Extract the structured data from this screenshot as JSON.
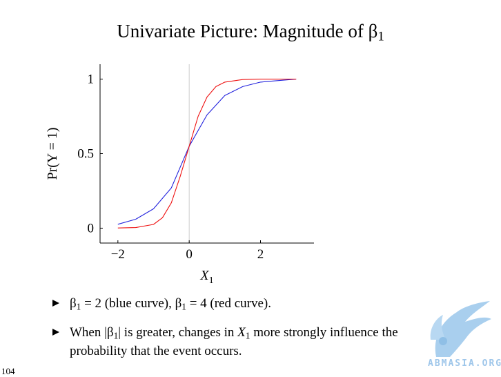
{
  "slide": {
    "title_prefix": "Univariate Picture: Magnitude of β",
    "title_sub": "1",
    "page_number": "104"
  },
  "bullets": [
    {
      "parts": [
        {
          "t": "β"
        },
        {
          "t": "1",
          "sub": true
        },
        {
          "t": " = 2 (blue curve), β"
        },
        {
          "t": "1",
          "sub": true
        },
        {
          "t": " = 4 (red curve)."
        }
      ]
    },
    {
      "parts": [
        {
          "t": "When |β"
        },
        {
          "t": "1",
          "sub": true
        },
        {
          "t": "| is greater, changes in "
        },
        {
          "t": "X",
          "italic": true
        },
        {
          "t": "1",
          "sub": true
        },
        {
          "t": " more strongly influence the probability that the event occurs."
        }
      ]
    }
  ],
  "watermark": {
    "text": "ABMASIA.ORG"
  },
  "chart_data": {
    "type": "line",
    "title": "",
    "xlabel": "X",
    "xlabel_sub": "1",
    "ylabel": "Pr(Y = 1)",
    "xlim": [
      -2.5,
      3.5
    ],
    "ylim": [
      -0.1,
      1.1
    ],
    "x_ticks": [
      -2,
      0,
      2
    ],
    "x_tick_labels": [
      "−2",
      "0",
      "2"
    ],
    "y_ticks": [
      0,
      0.5,
      1
    ],
    "y_tick_labels": [
      "0",
      "0.5",
      "1"
    ],
    "grid": false,
    "legend": "none",
    "zero_line": 0,
    "colors": {
      "blue": "#2222dd",
      "red": "#ee1111",
      "zero_line": "#cccccc"
    },
    "series": [
      {
        "color": "#2222dd",
        "x": [
          -2,
          -1.5,
          -1,
          -0.5,
          0,
          0.5,
          1,
          1.5,
          2,
          2.5,
          3
        ],
        "y": [
          0.026,
          0.06,
          0.13,
          0.27,
          0.55,
          0.76,
          0.89,
          0.95,
          0.98,
          0.99,
          1.0
        ]
      },
      {
        "color": "#ee1111",
        "x": [
          -2,
          -1.5,
          -1,
          -0.75,
          -0.5,
          -0.25,
          0,
          0.25,
          0.5,
          0.75,
          1,
          1.5,
          2,
          2.5,
          3
        ],
        "y": [
          0.001,
          0.004,
          0.025,
          0.07,
          0.17,
          0.35,
          0.55,
          0.75,
          0.88,
          0.95,
          0.98,
          0.997,
          1.0,
          1.0,
          1.0
        ]
      }
    ]
  }
}
